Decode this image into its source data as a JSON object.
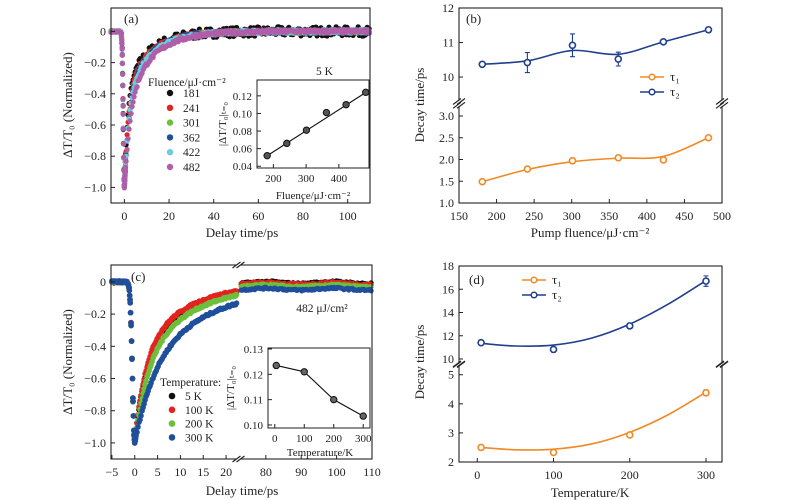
{
  "chart_data": [
    {
      "type": "scatter",
      "panel_label": "(a)",
      "xlabel": "Delay time/ps",
      "ylabel": "ΔT/T₀ (Normalized)",
      "xlim": [
        -6,
        110
      ],
      "ylim": [
        -1.1,
        0.15
      ],
      "xticks": [
        0,
        20,
        40,
        60,
        80,
        100
      ],
      "xticklabels": [
        "0",
        "20",
        "40",
        "60",
        "80",
        "100"
      ],
      "yticks": [
        0,
        -0.2,
        -0.4,
        -0.6,
        -0.8,
        -1.0
      ],
      "yticklabels": [
        "0",
        "−0.2",
        "−0.4",
        "−0.6",
        "−0.8",
        "−1.0"
      ],
      "legend_title": "Fluence/μJ·cm⁻²",
      "annotation": "5 K",
      "series": [
        {
          "name": "181",
          "color": "#111111",
          "A": 0.62,
          "tau1": 1.5,
          "tau2": 10.4
        },
        {
          "name": "241",
          "color": "#e3231f",
          "A": 0.6,
          "tau1": 1.8,
          "tau2": 10.4
        },
        {
          "name": "301",
          "color": "#6cbf3b",
          "A": 0.58,
          "tau1": 2.0,
          "tau2": 10.9
        },
        {
          "name": "362",
          "color": "#1f4e9c",
          "A": 0.57,
          "tau1": 2.0,
          "tau2": 10.5
        },
        {
          "name": "422",
          "color": "#6ccbe2",
          "A": 0.56,
          "tau1": 2.0,
          "tau2": 11.0
        },
        {
          "name": "482",
          "color": "#b15ea9",
          "A": 0.52,
          "tau1": 2.5,
          "tau2": 11.4
        }
      ],
      "inset": {
        "xlabel": "Fluence/μJ·cm⁻²",
        "ylabel": "|ΔT/T₀|ₜ₌₀",
        "xlim": [
          150,
          492
        ],
        "ylim": [
          0.038,
          0.138
        ],
        "xticks": [
          200,
          300,
          400
        ],
        "xticklabels": [
          "200",
          "300",
          "400"
        ],
        "yticks": [
          0.04,
          0.06,
          0.08,
          0.1,
          0.12
        ],
        "yticklabels": [
          "0.04",
          "0.06",
          "0.08",
          "0.10",
          "0.12"
        ],
        "x": [
          181,
          241,
          301,
          362,
          422,
          482
        ],
        "y": [
          0.052,
          0.066,
          0.081,
          0.101,
          0.11,
          0.124
        ],
        "fit": {
          "type": "linear",
          "x": [
            175,
            485
          ],
          "y": [
            0.0505,
            0.1245
          ]
        }
      }
    },
    {
      "type": "line",
      "panel_label": "(b)",
      "xlabel": "Pump fluence/μJ·cm⁻²",
      "ylabel": "Decay time/ps",
      "xlim": [
        150,
        500
      ],
      "xticks": [
        150,
        200,
        250,
        300,
        350,
        400,
        450,
        500
      ],
      "xticklabels": [
        "150",
        "200",
        "250",
        "300",
        "350",
        "400",
        "450",
        "500"
      ],
      "ylim_upper": [
        9.35,
        12
      ],
      "ylim_lower": [
        1.0,
        3.2
      ],
      "yticks_upper": [
        10,
        11,
        12
      ],
      "yticklabels_upper": [
        "10",
        "11",
        "12"
      ],
      "yticks_lower": [
        1.0,
        1.5,
        2.0,
        2.5,
        3.0
      ],
      "yticklabels_lower": [
        "1.0",
        "1.5",
        "2.0",
        "2.5",
        "3.0"
      ],
      "series": [
        {
          "name": "τ₁",
          "color": "#f08a24",
          "axis": "lower",
          "x": [
            181,
            241,
            301,
            362,
            422,
            482
          ],
          "y": [
            1.49,
            1.78,
            1.97,
            2.04,
            1.99,
            2.5
          ],
          "err": [
            0.03,
            0.03,
            0.06,
            0.04,
            0.03,
            0.03
          ],
          "fit_y": [
            1.49,
            1.77,
            1.95,
            2.03,
            2.07,
            2.5
          ]
        },
        {
          "name": "τ₂",
          "color": "#1f3f8f",
          "axis": "upper",
          "x": [
            181,
            241,
            301,
            362,
            422,
            482
          ],
          "y": [
            10.37,
            10.42,
            10.92,
            10.52,
            11.02,
            11.37
          ],
          "err": [
            0.02,
            0.29,
            0.33,
            0.2,
            0.05,
            0.07
          ],
          "fit_y": [
            10.37,
            10.47,
            10.77,
            10.66,
            11.02,
            11.37
          ]
        }
      ]
    },
    {
      "type": "scatter",
      "panel_label": "(c)",
      "xlabel": "Delay time/ps",
      "ylabel": "ΔT/T₀ (Normalized)",
      "xlim_left": [
        -5.2,
        22.5
      ],
      "xlim_right": [
        72.7,
        110
      ],
      "ylim": [
        -1.1,
        0.105
      ],
      "xticks_left": [
        -5,
        0,
        5,
        10,
        15,
        20
      ],
      "xticklabels_left": [
        "−5",
        "0",
        "5",
        "10",
        "15",
        "20"
      ],
      "xticks_right": [
        80,
        90,
        100,
        110
      ],
      "xticklabels_right": [
        "80",
        "90",
        "100",
        "110"
      ],
      "yticks": [
        0,
        -0.2,
        -0.4,
        -0.6,
        -0.8,
        -1.0
      ],
      "yticklabels": [
        "0",
        "−0.2",
        "−0.4",
        "−0.6",
        "−0.8",
        "−1.0"
      ],
      "legend_title": "Temperature:",
      "annotation": "482 μJ/cm²",
      "series": [
        {
          "name": "5 K",
          "color": "#111111",
          "A": 0.55,
          "tau1": 2.5,
          "tau2": 11.4,
          "offset": 0.0
        },
        {
          "name": "100 K",
          "color": "#e3231f",
          "A": 0.55,
          "tau1": 2.33,
          "tau2": 10.8,
          "offset": -0.005
        },
        {
          "name": "200 K",
          "color": "#6cbf3b",
          "A": 0.53,
          "tau1": 2.93,
          "tau2": 12.85,
          "offset": -0.02
        },
        {
          "name": "300 K",
          "color": "#1f4e9c",
          "A": 0.5,
          "tau1": 4.38,
          "tau2": 16.7,
          "offset": -0.04
        }
      ],
      "inset": {
        "xlabel": "Temperature/K",
        "ylabel": "|ΔT/T₀|ₜ₌₀",
        "xlim": [
          -23,
          323
        ],
        "ylim": [
          0.0988,
          0.1304
        ],
        "xticks": [
          0,
          100,
          200,
          300
        ],
        "xticklabels": [
          "0",
          "100",
          "200",
          "300"
        ],
        "yticks": [
          0.1,
          0.11,
          0.12,
          0.13
        ],
        "yticklabels": [
          "0.10",
          "0.11",
          "0.12",
          "0.13"
        ],
        "x": [
          5,
          100,
          200,
          300
        ],
        "y": [
          0.1235,
          0.121,
          0.11,
          0.1035
        ]
      }
    },
    {
      "type": "line",
      "panel_label": "(d)",
      "xlabel": "Temperature/K",
      "ylabel": "Decay time/ps",
      "xlim": [
        -24,
        321
      ],
      "xticks": [
        0,
        100,
        200,
        300
      ],
      "xticklabels": [
        "0",
        "100",
        "200",
        "300"
      ],
      "ylim_upper": [
        9.7,
        18
      ],
      "ylim_lower": [
        2,
        5.3
      ],
      "yticks_upper": [
        10,
        12,
        14,
        16,
        18
      ],
      "yticklabels_upper": [
        "10",
        "12",
        "14",
        "16",
        "18"
      ],
      "yticks_lower": [
        2,
        3,
        4,
        5
      ],
      "yticklabels_lower": [
        "2",
        "3",
        "4",
        "5"
      ],
      "series": [
        {
          "name": "τ₁",
          "color": "#f08a24",
          "axis": "lower",
          "x": [
            5,
            100,
            200,
            300
          ],
          "y": [
            2.5,
            2.33,
            2.93,
            4.38
          ],
          "err": [
            0.02,
            0.08,
            0.06,
            0.1
          ],
          "fit_x": [
            5,
            50,
            100,
            150,
            200,
            250,
            300
          ],
          "fit_y": [
            2.5,
            2.42,
            2.44,
            2.62,
            3.02,
            3.62,
            4.4
          ]
        },
        {
          "name": "τ₂",
          "color": "#1f3f8f",
          "axis": "upper",
          "x": [
            5,
            100,
            200,
            300
          ],
          "y": [
            11.4,
            10.82,
            12.85,
            16.7
          ],
          "err": [
            0.05,
            0.22,
            0.22,
            0.45
          ],
          "fit_x": [
            5,
            50,
            100,
            150,
            200,
            250,
            300
          ],
          "fit_y": [
            11.35,
            11.12,
            11.2,
            11.8,
            13.0,
            14.7,
            16.75
          ]
        }
      ]
    }
  ]
}
